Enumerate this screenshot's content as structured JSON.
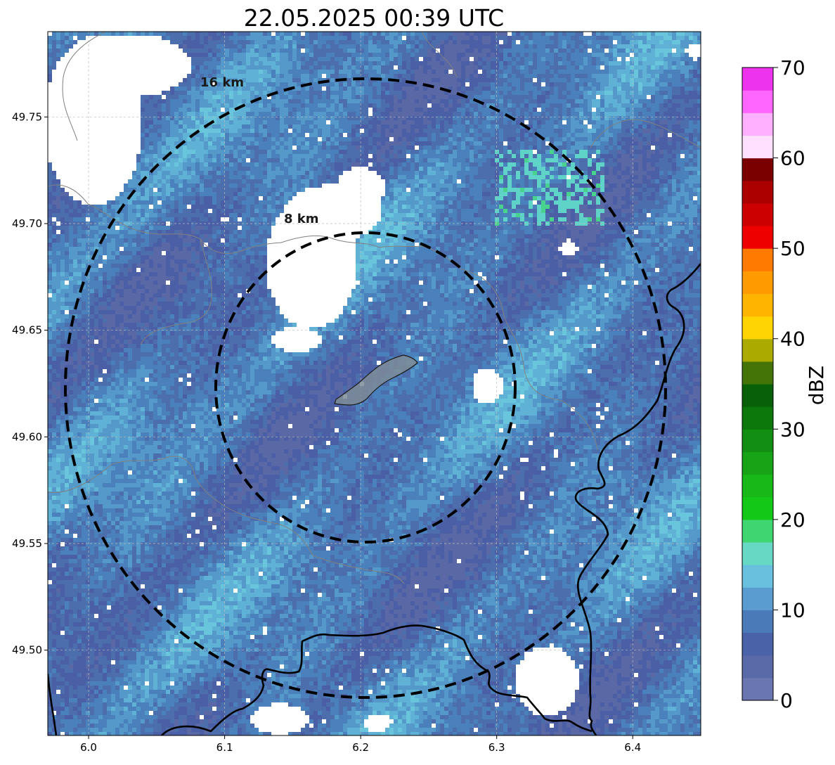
{
  "title": "22.05.2025 00:39 UTC",
  "map": {
    "lon_range": [
      5.97,
      6.45
    ],
    "lat_range": [
      49.46,
      49.79
    ],
    "x_ticks": [
      {
        "value": 6.0,
        "label": "6.0"
      },
      {
        "value": 6.1,
        "label": "6.1"
      },
      {
        "value": 6.2,
        "label": "6.2"
      },
      {
        "value": 6.3,
        "label": "6.3"
      },
      {
        "value": 6.4,
        "label": "6.4"
      }
    ],
    "y_ticks": [
      {
        "value": 49.5,
        "label": "49.50"
      },
      {
        "value": 49.55,
        "label": "49.55"
      },
      {
        "value": 49.6,
        "label": "49.60"
      },
      {
        "value": 49.65,
        "label": "49.65"
      },
      {
        "value": 49.7,
        "label": "49.70"
      },
      {
        "value": 49.75,
        "label": "49.75"
      }
    ],
    "gridlines": true,
    "range_rings": [
      {
        "label": "8 km",
        "radius_km": 8
      },
      {
        "label": "16 km",
        "radius_km": 16
      }
    ],
    "center": {
      "lon": 6.2,
      "lat": 49.623
    }
  },
  "colorbar": {
    "label": "dBZ",
    "min": 0,
    "max": 70,
    "ticks": [
      "0",
      "10",
      "20",
      "30",
      "40",
      "50",
      "60",
      "70"
    ],
    "colors": [
      "#6a76b0",
      "#5a6aa8",
      "#4a62a8",
      "#4a7ab8",
      "#5a9cd0",
      "#68c0de",
      "#66d8c4",
      "#3fd672",
      "#14c818",
      "#18b818",
      "#16a416",
      "#128e12",
      "#0c780c",
      "#086008",
      "#447408",
      "#aaaa00",
      "#ffd400",
      "#ffb400",
      "#ff9a00",
      "#ff7a00",
      "#ee0000",
      "#cc0000",
      "#aa0000",
      "#7a0000",
      "#ffe0ff",
      "#ffb0ff",
      "#ff66ff",
      "#ee33ee"
    ]
  }
}
